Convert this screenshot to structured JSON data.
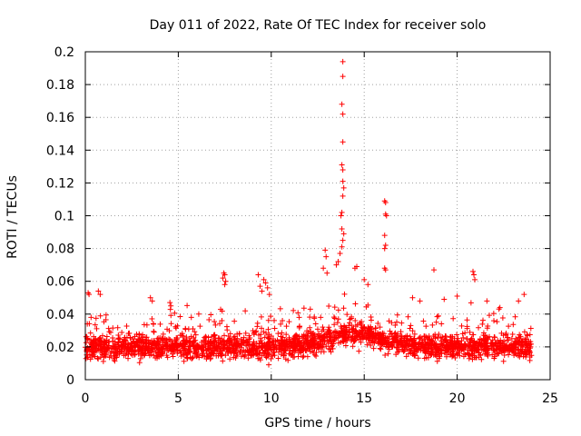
{
  "chart_data": {
    "type": "scatter",
    "title": "Day 011 of 2022, Rate Of TEC Index for receiver solo",
    "xlabel": "GPS time / hours",
    "ylabel": "ROTI / TECUs",
    "xlim": [
      0,
      25
    ],
    "ylim": [
      0,
      0.2
    ],
    "xticks": [
      0,
      5,
      10,
      15,
      20,
      25
    ],
    "yticks": [
      0,
      0.02,
      0.04,
      0.06,
      0.08,
      0.1,
      0.12,
      0.14,
      0.16,
      0.18,
      0.2
    ],
    "xtick_labels": [
      "0",
      "5",
      "10",
      "15",
      "20",
      "25"
    ],
    "ytick_labels": [
      "0",
      "0.02",
      "0.04",
      "0.06",
      "0.08",
      "0.1",
      "0.12",
      "0.14",
      "0.16",
      "0.18",
      "0.2"
    ],
    "grid": true,
    "marker": "+",
    "color": "#ff0000",
    "point_cloud": {
      "x_range": [
        0,
        24
      ],
      "baseline_level": 0.02,
      "baseline_spread": 0.012,
      "count": 2400
    },
    "series": [
      {
        "name": "ROTI",
        "points": [
          [
            13.85,
            0.194
          ],
          [
            13.85,
            0.185
          ],
          [
            13.8,
            0.168
          ],
          [
            13.85,
            0.162
          ],
          [
            13.85,
            0.145
          ],
          [
            13.8,
            0.131
          ],
          [
            13.85,
            0.128
          ],
          [
            13.85,
            0.121
          ],
          [
            13.9,
            0.117
          ],
          [
            13.85,
            0.112
          ],
          [
            13.8,
            0.102
          ],
          [
            13.75,
            0.1
          ],
          [
            13.8,
            0.092
          ],
          [
            13.9,
            0.089
          ],
          [
            13.85,
            0.085
          ],
          [
            13.8,
            0.081
          ],
          [
            13.7,
            0.077
          ],
          [
            13.6,
            0.072
          ],
          [
            13.5,
            0.07
          ],
          [
            12.9,
            0.079
          ],
          [
            12.95,
            0.075
          ],
          [
            12.8,
            0.068
          ],
          [
            13.0,
            0.065
          ],
          [
            14.6,
            0.069
          ],
          [
            14.5,
            0.068
          ],
          [
            15.0,
            0.061
          ],
          [
            15.2,
            0.058
          ],
          [
            16.1,
            0.109
          ],
          [
            16.15,
            0.108
          ],
          [
            16.15,
            0.101
          ],
          [
            16.2,
            0.1
          ],
          [
            16.1,
            0.088
          ],
          [
            16.15,
            0.082
          ],
          [
            16.1,
            0.08
          ],
          [
            16.1,
            0.068
          ],
          [
            16.15,
            0.067
          ],
          [
            18.75,
            0.067
          ],
          [
            20.85,
            0.066
          ],
          [
            20.9,
            0.064
          ],
          [
            20.95,
            0.061
          ],
          [
            7.45,
            0.065
          ],
          [
            7.5,
            0.064
          ],
          [
            7.4,
            0.062
          ],
          [
            7.55,
            0.06
          ],
          [
            7.5,
            0.058
          ],
          [
            9.3,
            0.064
          ],
          [
            9.6,
            0.061
          ],
          [
            9.7,
            0.059
          ],
          [
            9.4,
            0.057
          ],
          [
            9.8,
            0.056
          ],
          [
            9.5,
            0.054
          ],
          [
            9.9,
            0.052
          ],
          [
            0.15,
            0.053
          ],
          [
            0.2,
            0.052
          ],
          [
            0.7,
            0.054
          ],
          [
            0.8,
            0.052
          ],
          [
            3.5,
            0.05
          ],
          [
            3.6,
            0.048
          ],
          [
            4.55,
            0.047
          ],
          [
            4.6,
            0.045
          ],
          [
            5.7,
            0.038
          ],
          [
            6.1,
            0.04
          ],
          [
            8.6,
            0.042
          ],
          [
            10.6,
            0.036
          ],
          [
            11.5,
            0.038
          ],
          [
            12.1,
            0.043
          ],
          [
            17.6,
            0.05
          ],
          [
            18.0,
            0.048
          ],
          [
            19.3,
            0.049
          ],
          [
            20.0,
            0.051
          ],
          [
            21.6,
            0.048
          ],
          [
            22.3,
            0.044
          ],
          [
            23.3,
            0.048
          ],
          [
            23.6,
            0.052
          ]
        ]
      }
    ]
  }
}
